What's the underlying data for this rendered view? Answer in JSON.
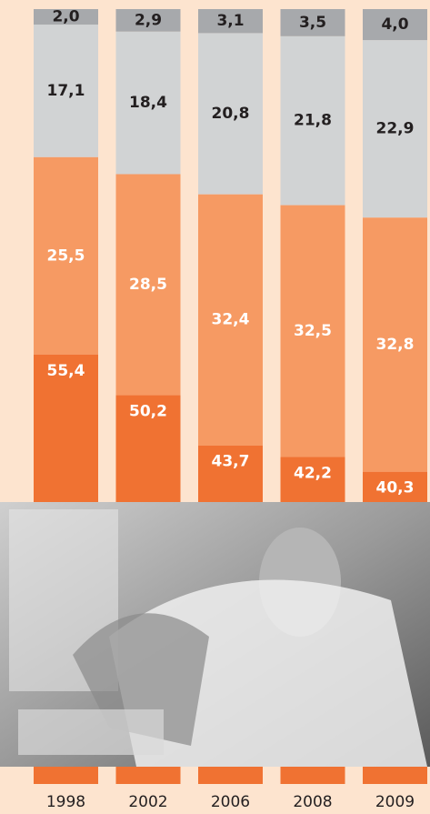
{
  "chart_data": {
    "type": "bar",
    "stacked": true,
    "categories": [
      "1998",
      "2002",
      "2006",
      "2008",
      "2009"
    ],
    "series": [
      {
        "color": "#f07232",
        "values": [
          55.4,
          50.2,
          43.7,
          42.2,
          40.3
        ],
        "value_labels": [
          "55,4",
          "50,2",
          "43,7",
          "42,2",
          "40,3"
        ]
      },
      {
        "color": "#f69a63",
        "values": [
          25.5,
          28.5,
          32.4,
          32.5,
          32.8
        ],
        "value_labels": [
          "25,5",
          "28,5",
          "32,4",
          "32,5",
          "32,8"
        ]
      },
      {
        "color": "#d1d3d4",
        "values": [
          17.1,
          18.4,
          20.8,
          21.8,
          22.9
        ],
        "value_labels": [
          "17,1",
          "18,4",
          "20,8",
          "21,8",
          "22,9"
        ]
      },
      {
        "color": "#a7a9ac",
        "values": [
          2.0,
          2.9,
          3.1,
          3.5,
          4.0
        ],
        "value_labels": [
          "2,0",
          "2,9",
          "3,1",
          "3,5",
          "4,0"
        ]
      }
    ],
    "ylim": [
      0,
      100
    ]
  }
}
